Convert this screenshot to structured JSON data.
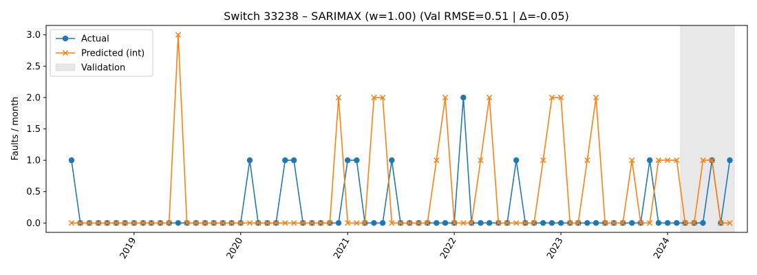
{
  "chart_data": {
    "type": "line",
    "title": "Switch 33238 – SARIMAX (w=1.00) (Val RMSE=0.51 | Δ=-0.05)",
    "xlabel": "",
    "ylabel": "Faults / month",
    "x_start": "2018-06",
    "x_end": "2024-08",
    "xlim": [
      "2018-03-06",
      "2024-09-30"
    ],
    "ylim": [
      -0.15,
      3.15
    ],
    "x_ticks": [
      "2019",
      "2020",
      "2021",
      "2022",
      "2023",
      "2024"
    ],
    "y_ticks": [
      "0.0",
      "0.5",
      "1.0",
      "1.5",
      "2.0",
      "2.5",
      "3.0"
    ],
    "grid": false,
    "legend_position": "top-left",
    "validation_window": [
      "2024-03",
      "2024-08"
    ],
    "series": [
      {
        "name": "Actual",
        "color": "#1f77b4",
        "marker": "circle",
        "values": [
          1,
          0,
          0,
          0,
          0,
          0,
          0,
          0,
          0,
          0,
          0,
          0,
          0,
          0,
          0,
          0,
          0,
          0,
          0,
          0,
          1,
          0,
          0,
          0,
          1,
          1,
          0,
          0,
          0,
          0,
          0,
          1,
          1,
          0,
          0,
          0,
          1,
          0,
          0,
          0,
          0,
          0,
          0,
          0,
          2,
          0,
          0,
          0,
          0,
          0,
          1,
          0,
          0,
          0,
          0,
          0,
          0,
          0,
          0,
          0,
          0,
          0,
          0,
          0,
          0,
          1,
          0,
          0,
          0,
          0,
          0,
          0,
          1,
          0,
          1
        ]
      },
      {
        "name": "Predicted (int)",
        "color": "#ff7f0e",
        "marker": "x",
        "values": [
          0,
          0,
          0,
          0,
          0,
          0,
          0,
          0,
          0,
          0,
          0,
          0,
          3,
          0,
          0,
          0,
          0,
          0,
          0,
          0,
          0,
          0,
          0,
          0,
          0,
          0,
          0,
          0,
          0,
          0,
          2,
          0,
          0,
          0,
          2,
          2,
          0,
          0,
          0,
          0,
          0,
          1,
          2,
          0,
          0,
          0,
          1,
          2,
          0,
          0,
          0,
          0,
          0,
          1,
          2,
          2,
          0,
          0,
          1,
          2,
          0,
          0,
          0,
          1,
          0,
          0,
          1,
          1,
          1,
          0,
          0,
          1,
          1,
          0,
          0
        ]
      },
      {
        "name": "Validation",
        "color": "#e8e8e8",
        "marker": "band"
      }
    ]
  }
}
